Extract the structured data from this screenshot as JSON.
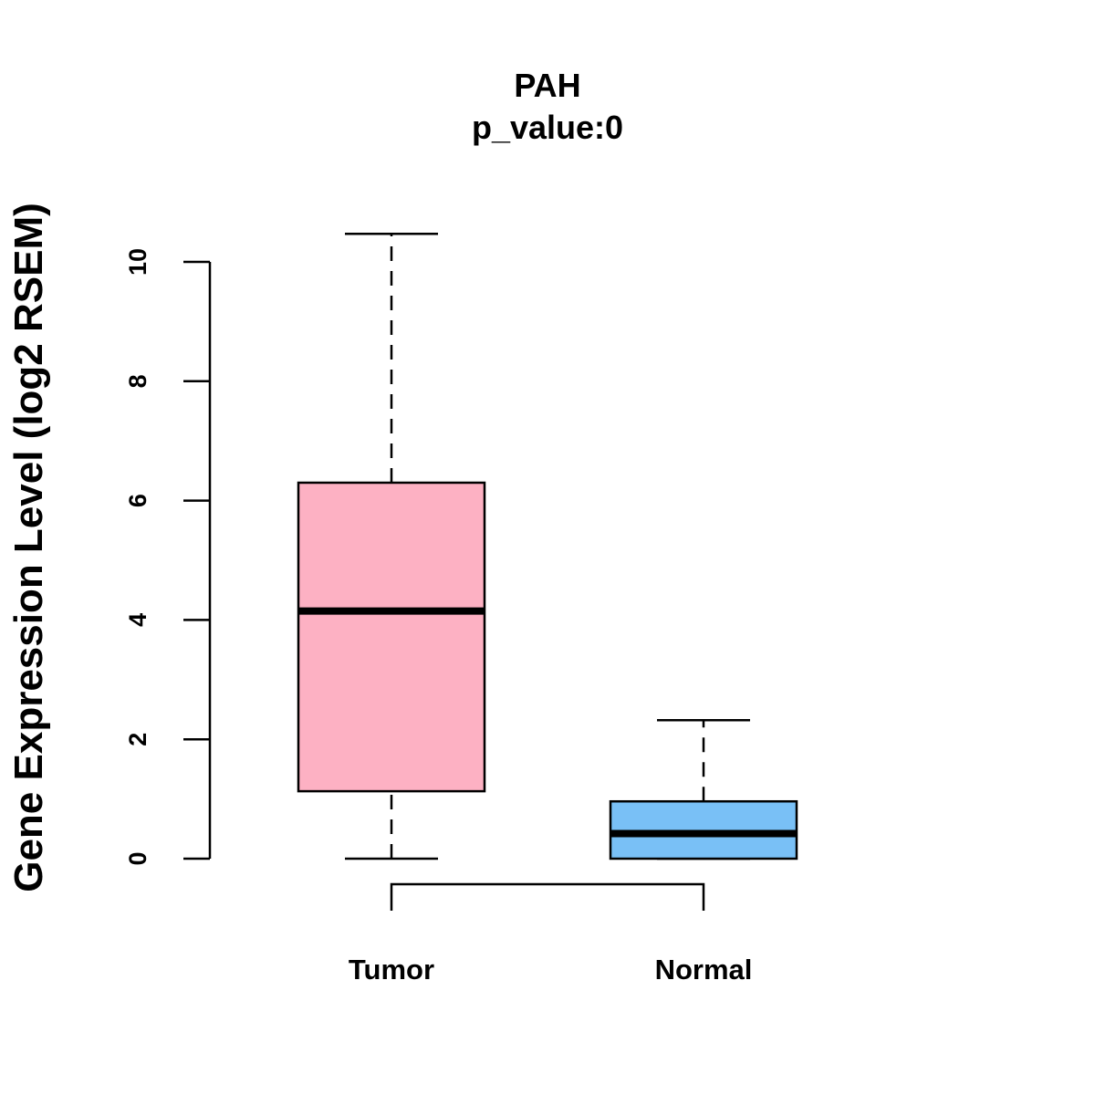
{
  "chart_data": {
    "type": "boxplot",
    "title": "PAH",
    "subtitle": "p_value:0",
    "ylabel": "Gene Expression Level (log2 RSEM)",
    "xlabel": "",
    "yticks": [
      0,
      2,
      4,
      6,
      8,
      10
    ],
    "ylim": [
      0,
      10.47
    ],
    "categories": [
      "Tumor",
      "Normal"
    ],
    "boxes": [
      {
        "category": "Tumor",
        "whisker_low": 0,
        "q1": 1.13,
        "median": 4.15,
        "q3": 6.3,
        "whisker_high": 10.47,
        "color": "#fdb1c3"
      },
      {
        "category": "Normal",
        "whisker_low": 0,
        "q1": 0,
        "median": 0.42,
        "q3": 0.96,
        "whisker_high": 2.32,
        "color": "#79c0f6"
      }
    ],
    "grid": false,
    "legend": "none"
  }
}
